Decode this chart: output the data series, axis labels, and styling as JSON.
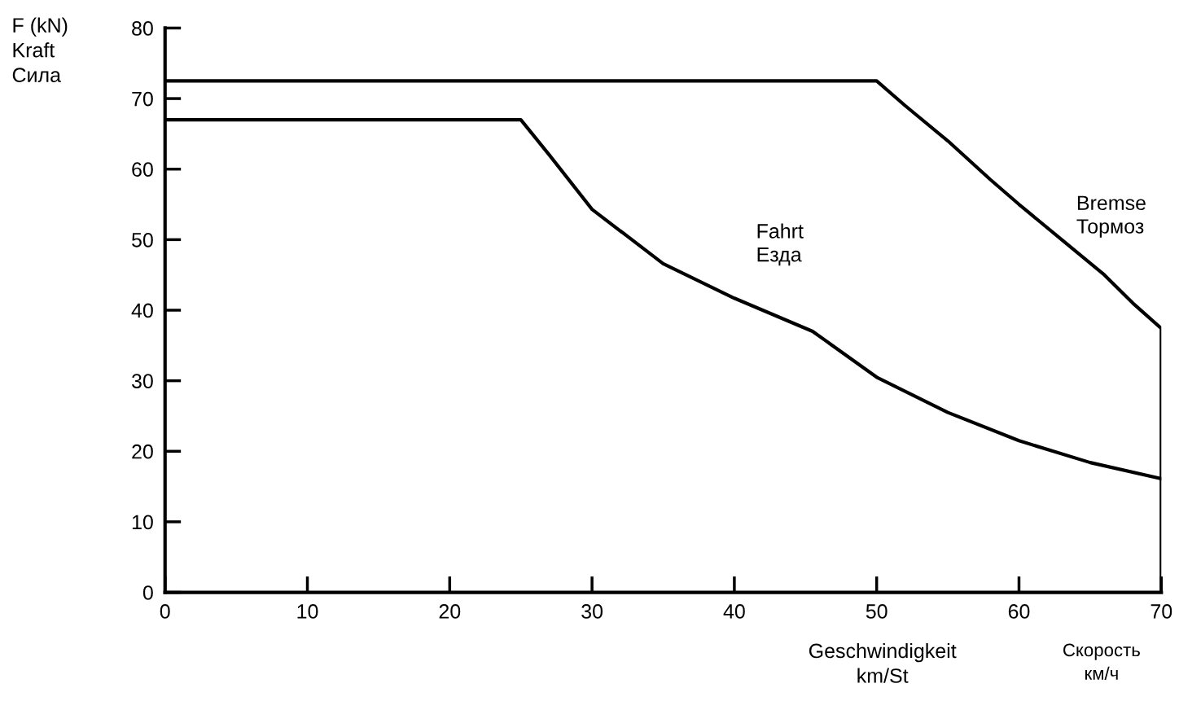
{
  "chart_data": {
    "type": "line",
    "ylabel": "F (kN)\nKraft\nСила",
    "xlabel": "Geschwindigkeit\nkm/St",
    "annotations": [
      "Скорость\nкм/ч"
    ],
    "xlim": [
      0,
      70
    ],
    "xticks": [
      0,
      10,
      20,
      30,
      40,
      50,
      60,
      70
    ],
    "ylim": [
      0,
      80
    ],
    "yticks": [
      0,
      10,
      20,
      30,
      40,
      50,
      60,
      70,
      80
    ],
    "grid": false,
    "legend": false,
    "marker": "none",
    "line_style": "solid",
    "series": [
      {
        "name": "Fahrt\nЕзда",
        "color": "#000000",
        "x": [
          0,
          25,
          27,
          30,
          35,
          40,
          45.5,
          50,
          55,
          60,
          65,
          70
        ],
        "values": [
          67,
          67,
          62,
          54.3,
          46.6,
          41.7,
          37,
          30.5,
          25.5,
          21.5,
          18.4,
          16.1
        ]
      },
      {
        "name": "Bremse\nТормоз",
        "color": "#000000",
        "x": [
          0,
          50,
          52,
          55,
          58,
          60,
          63,
          66,
          68,
          70,
          70
        ],
        "values": [
          72.5,
          72.5,
          69,
          64,
          58.5,
          55,
          50,
          45,
          41,
          37.4,
          0
        ]
      }
    ]
  }
}
